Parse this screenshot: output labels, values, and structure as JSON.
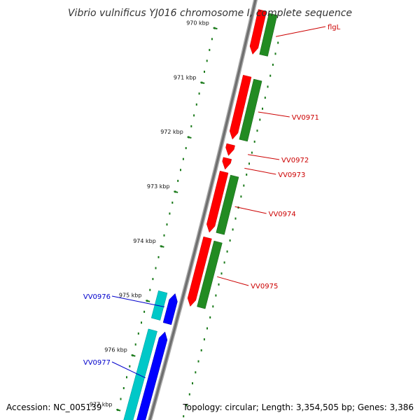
{
  "title": "Vibrio vulnificus YJ016 chromosome I, complete sequence",
  "footer": {
    "accession": "Accession: NC_005139",
    "summary": "Topology: circular; Length: 3,354,505 bp; Genes: 3,386"
  },
  "scale": {
    "ticks": [
      {
        "kbp": 970,
        "label": "970 kbp"
      },
      {
        "kbp": 971,
        "label": "971 kbp"
      },
      {
        "kbp": 972,
        "label": "972 kbp"
      },
      {
        "kbp": 973,
        "label": "973 kbp"
      },
      {
        "kbp": 974,
        "label": "974 kbp"
      },
      {
        "kbp": 975,
        "label": "975 kbp"
      },
      {
        "kbp": 976,
        "label": "976 kbp"
      },
      {
        "kbp": 977,
        "label": "977 kbp"
      }
    ]
  },
  "colors": {
    "forward_gene": "#ff0000",
    "forward_cds": "#228b22",
    "reverse_gene": "#0000ff",
    "reverse_cds": "#00c8c8",
    "forward_label": "#cc0000",
    "reverse_label": "#0000cc",
    "tick": "#1a7a1a",
    "backbone": "#8c8c8c"
  },
  "genes": [
    {
      "name": "flgL",
      "strand": "forward",
      "start_kbp": 969.5,
      "end_kbp": 970.3
    },
    {
      "name": "VV0971",
      "strand": "forward",
      "start_kbp": 970.7,
      "end_kbp": 971.85
    },
    {
      "name": "VV0972",
      "strand": "forward",
      "start_kbp": 971.95,
      "end_kbp": 972.15
    },
    {
      "name": "VV0973",
      "strand": "forward",
      "start_kbp": 972.2,
      "end_kbp": 972.4
    },
    {
      "name": "VV0974",
      "strand": "forward",
      "start_kbp": 972.45,
      "end_kbp": 973.55
    },
    {
      "name": "VV0975",
      "strand": "forward",
      "start_kbp": 973.65,
      "end_kbp": 974.9
    },
    {
      "name": "VV0976",
      "strand": "reverse",
      "start_kbp": 974.75,
      "end_kbp": 975.3
    },
    {
      "name": "VV0977",
      "strand": "reverse",
      "start_kbp": 975.45,
      "end_kbp": 977.2
    }
  ]
}
